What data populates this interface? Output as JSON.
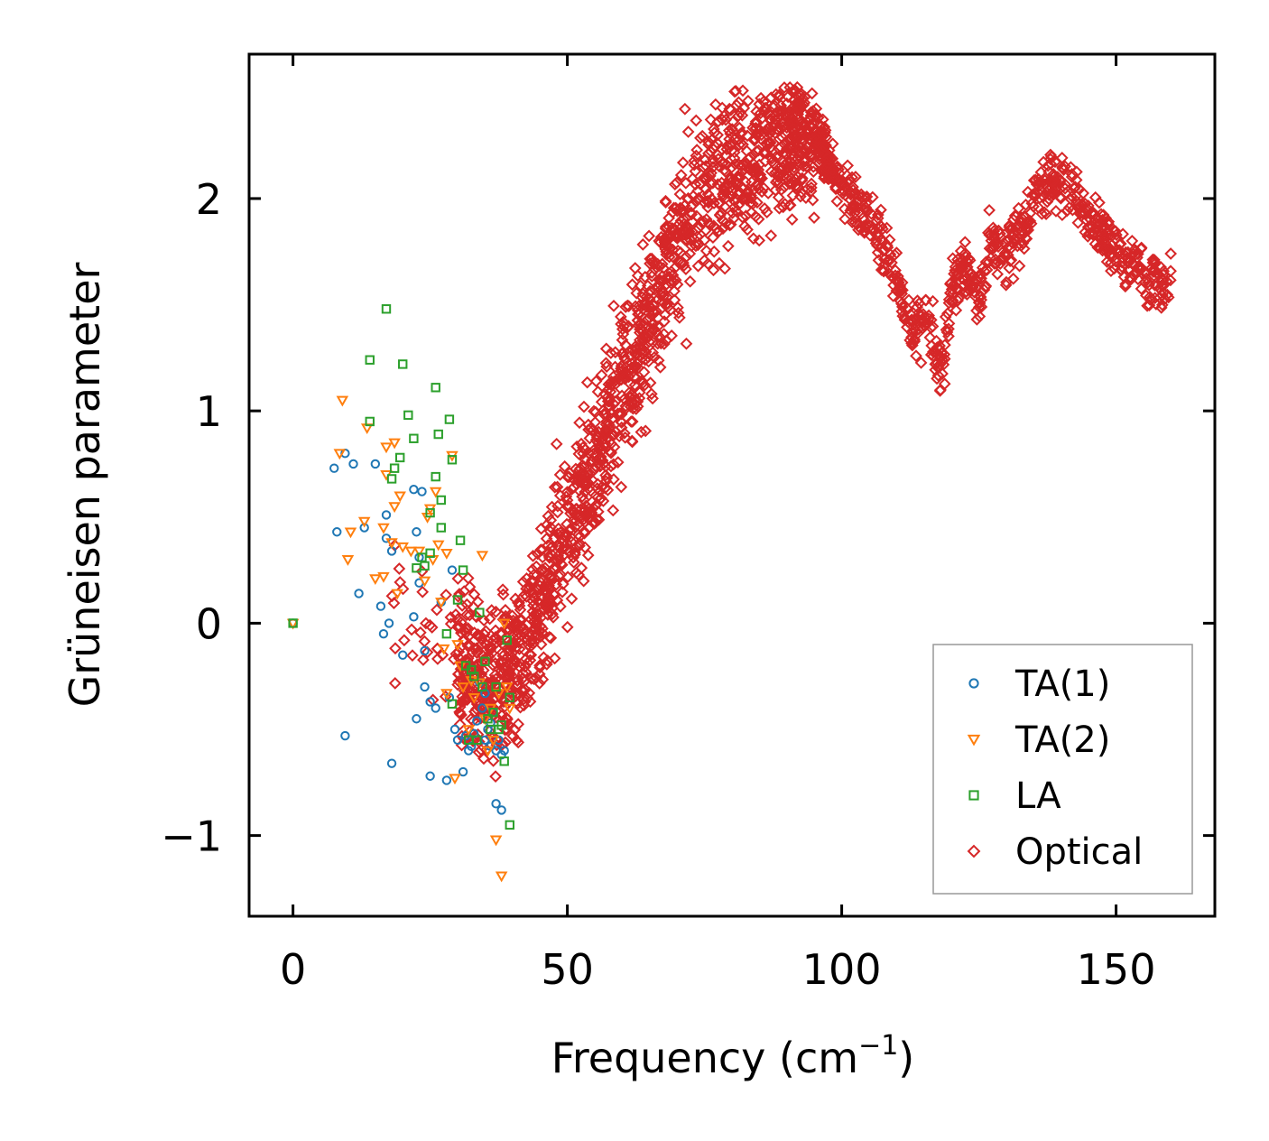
{
  "chart_data": {
    "type": "scatter",
    "title": "",
    "xlabel": "Frequency (cm",
    "xlabel_superscript": "−1",
    "xlabel_suffix": ")",
    "ylabel": "Grüneisen parameter",
    "xlim": [
      -8,
      168
    ],
    "ylim": [
      -1.38,
      2.68
    ],
    "xticks": [
      0,
      50,
      100,
      150
    ],
    "xtick_labels": [
      "0",
      "50",
      "100",
      "150"
    ],
    "yticks": [
      -1,
      0,
      1,
      2
    ],
    "ytick_labels": [
      "−1",
      "0",
      "1",
      "2"
    ],
    "grid": false,
    "legend_position": "lower-right",
    "series": [
      {
        "name": "TA(1)",
        "marker": "circle",
        "color": "#1f77b4",
        "x": [
          0,
          7.5,
          8,
          9.5,
          9.5,
          11,
          12,
          13,
          15,
          16,
          16.5,
          17,
          17,
          17.5,
          18,
          18,
          20,
          22,
          22,
          22.5,
          22.5,
          23,
          23,
          23.5,
          24,
          24,
          25,
          25,
          26,
          27,
          28,
          28.5,
          29,
          29.5,
          30,
          31,
          31.5,
          32,
          32.5,
          33,
          33.5,
          34,
          34.5,
          35,
          35,
          35.5,
          36,
          36,
          36.5,
          37,
          37,
          37.5,
          38,
          38,
          38.5
        ],
        "y": [
          0,
          0.73,
          0.43,
          0.8,
          -0.53,
          0.75,
          0.14,
          0.45,
          0.75,
          0.08,
          -0.05,
          0.51,
          0.4,
          0,
          0.34,
          -0.66,
          -0.15,
          0.63,
          0.03,
          -0.45,
          0.43,
          0.19,
          0.31,
          0.62,
          -0.3,
          -0.13,
          -0.37,
          -0.72,
          -0.4,
          0.1,
          -0.74,
          -0.35,
          0.25,
          -0.5,
          -0.55,
          -0.7,
          -0.53,
          -0.6,
          -0.58,
          -0.52,
          -0.46,
          -0.28,
          -0.4,
          -0.55,
          -0.33,
          -0.5,
          -0.47,
          -0.58,
          -0.42,
          -0.6,
          -0.85,
          -0.55,
          -0.62,
          -0.88,
          -0.6
        ]
      },
      {
        "name": "TA(2)",
        "marker": "triangle-down",
        "color": "#ff7f0e",
        "x": [
          0,
          8.5,
          9,
          10,
          10.5,
          13,
          13.5,
          15,
          16.5,
          16.5,
          17,
          17,
          18,
          18.5,
          18.5,
          19,
          19.5,
          20,
          21.5,
          23,
          24,
          24.5,
          25,
          25.5,
          26,
          26.5,
          27,
          27.5,
          28,
          28,
          29,
          29.5,
          30,
          30.5,
          31,
          32,
          32.5,
          33,
          34,
          34.5,
          35,
          35.5,
          36,
          36.5,
          37,
          37.5,
          38,
          38.5,
          39,
          39.5
        ],
        "y": [
          0,
          0.8,
          1.05,
          0.3,
          0.43,
          0.48,
          0.92,
          0.21,
          0.45,
          0.22,
          0.7,
          0.83,
          0.38,
          0.55,
          0.85,
          0.14,
          0.6,
          0.36,
          0.34,
          0.34,
          0.2,
          0.5,
          0.54,
          0.3,
          0.62,
          0.37,
          0.1,
          -0.12,
          0.33,
          -0.33,
          0.79,
          -0.73,
          -0.1,
          -0.2,
          -0.3,
          -0.5,
          -0.27,
          -0.35,
          -0.28,
          0.32,
          -0.45,
          -0.6,
          -0.4,
          -0.55,
          -1.02,
          -0.33,
          -1.19,
          0,
          -0.3,
          -0.4
        ]
      },
      {
        "name": "LA",
        "marker": "square",
        "color": "#2ca02c",
        "x": [
          0,
          14,
          14,
          17,
          18,
          18.5,
          19.5,
          20,
          21,
          22,
          22.5,
          23.5,
          24,
          25,
          25,
          26,
          26,
          26.5,
          27,
          27,
          28,
          28.5,
          29,
          29,
          30,
          30.5,
          31,
          31.5,
          32,
          32.5,
          33,
          33.5,
          34,
          34.5,
          35,
          35.5,
          36,
          36.5,
          37,
          37.5,
          38,
          38.5,
          39,
          39.5,
          39.5
        ],
        "y": [
          0,
          1.24,
          0.95,
          1.48,
          0.68,
          0.73,
          0.78,
          1.22,
          0.98,
          0.87,
          0.26,
          0.31,
          0.27,
          0.52,
          0.33,
          1.11,
          0.69,
          0.89,
          0.58,
          0.45,
          -0.05,
          0.96,
          0.77,
          -0.38,
          0.11,
          0.39,
          0.25,
          -0.2,
          -0.55,
          -0.22,
          -0.25,
          -0.55,
          0.05,
          -0.3,
          -0.18,
          -0.45,
          -0.5,
          -0.42,
          -0.3,
          -0.5,
          -0.48,
          -0.65,
          -0.08,
          -0.95,
          -0.35
        ]
      },
      {
        "name": "Optical",
        "marker": "diamond",
        "color": "#d62728",
        "x": [],
        "y": [],
        "trend_points": [
          [
            18,
            0.02
          ],
          [
            25,
            0.05
          ],
          [
            30,
            -0.1
          ],
          [
            35,
            -0.3
          ],
          [
            40,
            -0.2
          ],
          [
            45,
            0.1
          ],
          [
            50,
            0.45
          ],
          [
            55,
            0.75
          ],
          [
            60,
            1.1
          ],
          [
            65,
            1.45
          ],
          [
            70,
            1.8
          ],
          [
            75,
            2.05
          ],
          [
            80,
            2.15
          ],
          [
            85,
            2.2
          ],
          [
            90,
            2.3
          ],
          [
            93,
            2.4
          ],
          [
            97,
            2.2
          ],
          [
            100,
            2.05
          ],
          [
            105,
            1.9
          ],
          [
            110,
            1.6
          ],
          [
            113,
            1.35
          ],
          [
            116,
            1.45
          ],
          [
            118,
            1.2
          ],
          [
            120,
            1.55
          ],
          [
            122,
            1.7
          ],
          [
            125,
            1.5
          ],
          [
            127,
            1.8
          ],
          [
            130,
            1.75
          ],
          [
            133,
            1.85
          ],
          [
            136,
            2.05
          ],
          [
            140,
            2.1
          ],
          [
            145,
            1.95
          ],
          [
            150,
            1.75
          ],
          [
            155,
            1.65
          ],
          [
            160,
            1.6
          ]
        ],
        "spread": 0.38,
        "n_generated": 2400
      }
    ]
  }
}
